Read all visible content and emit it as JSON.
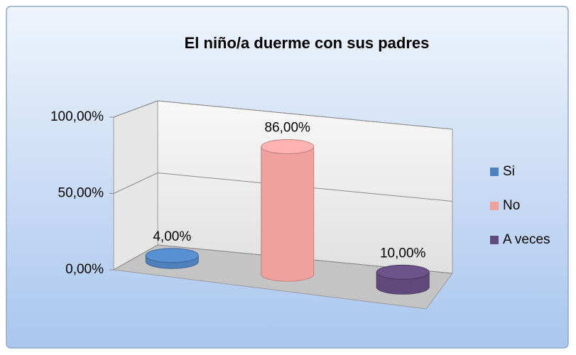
{
  "chart_data": {
    "type": "bar3d",
    "title": "El niño/a duerme con sus padres",
    "categories": [
      null
    ],
    "series": [
      {
        "name": "Si",
        "color": "#4f81bd",
        "values": [
          4
        ],
        "value_labels": [
          "4,00%"
        ]
      },
      {
        "name": "No",
        "color": "#f0a19e",
        "values": [
          86
        ],
        "value_labels": [
          "86,00%"
        ]
      },
      {
        "name": "A veces",
        "color": "#604a7b",
        "values": [
          10
        ],
        "value_labels": [
          "10,00%"
        ]
      }
    ],
    "ylim": [
      0,
      100
    ],
    "yticks": [
      {
        "value": 0,
        "label": "0,00%"
      },
      {
        "value": 50,
        "label": "50,00%"
      },
      {
        "value": 100,
        "label": "100,00%"
      }
    ],
    "grid": true,
    "legend": "right"
  }
}
